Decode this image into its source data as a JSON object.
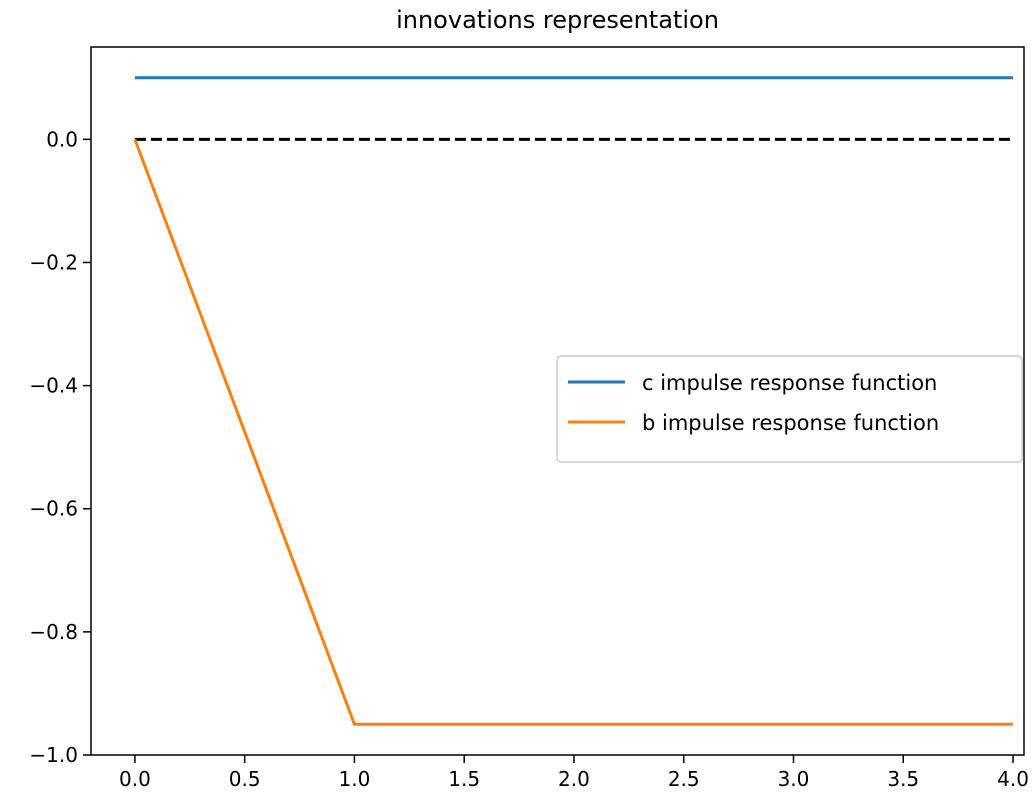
{
  "chart_data": {
    "type": "line",
    "title": "innovations representation",
    "xlabel": "",
    "ylabel": "",
    "xlim": [
      -0.2,
      4.05
    ],
    "ylim": [
      -1.0,
      0.15
    ],
    "xticks": [
      0.0,
      0.5,
      1.0,
      1.5,
      2.0,
      2.5,
      3.0,
      3.5,
      4.0
    ],
    "xtick_labels": [
      "0.0",
      "0.5",
      "1.0",
      "1.5",
      "2.0",
      "2.5",
      "3.0",
      "3.5",
      "4.0"
    ],
    "yticks": [
      0.0,
      -0.2,
      -0.4,
      -0.6,
      -0.8,
      -1.0
    ],
    "ytick_labels": [
      "0.0",
      "−0.2",
      "−0.4",
      "−0.6",
      "−0.8",
      "−1.0"
    ],
    "grid": false,
    "legend_position": "center-right",
    "x": [
      0,
      1,
      2,
      3,
      4
    ],
    "series": [
      {
        "name": "c impulse response function",
        "color": "#1f77b4",
        "style": "solid",
        "values": [
          0.1,
          0.1,
          0.1,
          0.1,
          0.1
        ]
      },
      {
        "name": "b impulse response function",
        "color": "#ff7f0e",
        "style": "solid",
        "values": [
          0.0,
          -0.95,
          -0.95,
          -0.95,
          -0.95
        ]
      }
    ],
    "reference_lines": [
      {
        "y": 0.0,
        "x_start": 0,
        "x_end": 4,
        "color": "#000000",
        "style": "dashed"
      }
    ]
  }
}
